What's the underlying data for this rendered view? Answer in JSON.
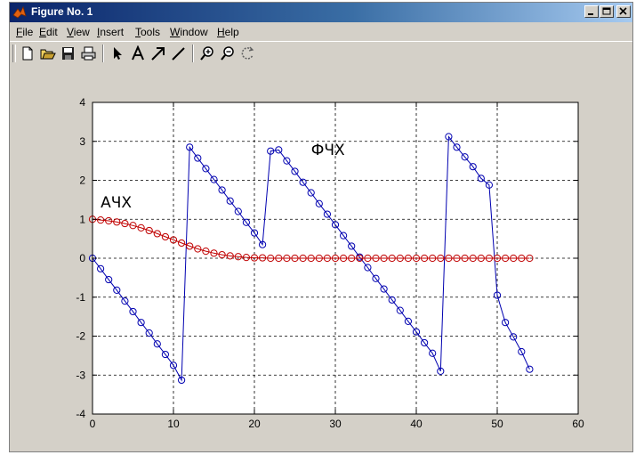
{
  "window": {
    "title": "Figure No. 1"
  },
  "menu": {
    "items": [
      "File",
      "Edit",
      "View",
      "Insert",
      "Tools",
      "Window",
      "Help"
    ]
  },
  "toolbar": {
    "buttons": [
      "new-figure",
      "open-file",
      "save",
      "print",
      "select-arrow",
      "insert-text",
      "insert-arrow",
      "insert-line",
      "zoom-in",
      "zoom-out",
      "rotate-3d"
    ]
  },
  "colors": {
    "window_bg": "#d4d0c8",
    "titlebar": "#0a246a",
    "phase_series": "#0000b0",
    "amplitude_series": "#c00000"
  },
  "chart_data": {
    "type": "line",
    "xlim": [
      0,
      60
    ],
    "ylim": [
      -4,
      4
    ],
    "x_ticks": [
      "0",
      "10",
      "20",
      "30",
      "40",
      "50",
      "60"
    ],
    "y_ticks": [
      "4",
      "3",
      "2",
      "1",
      "0",
      "-1",
      "-2",
      "-3",
      "-4"
    ],
    "grid": true,
    "annotations": [
      {
        "text": "АЧХ",
        "x": 1,
        "y": 1.3
      },
      {
        "text": "ФЧХ",
        "x": 27,
        "y": 2.65
      }
    ],
    "series": [
      {
        "color": "#0000b0",
        "marker": "circle",
        "x": [
          0,
          1,
          2,
          3,
          4,
          5,
          6,
          7,
          8,
          9,
          10,
          11,
          12,
          13,
          14,
          15,
          16,
          17,
          18,
          19,
          20,
          21,
          22,
          23,
          24,
          25,
          26,
          27,
          28,
          29,
          30,
          31,
          32,
          33,
          34,
          35,
          36,
          37,
          38,
          39,
          40,
          41,
          42,
          43,
          44,
          45,
          46,
          47,
          48,
          49,
          50,
          51,
          52,
          53,
          54
        ],
        "y": [
          0,
          -0.27,
          -0.55,
          -0.82,
          -1.1,
          -1.37,
          -1.65,
          -1.92,
          -2.2,
          -2.47,
          -2.75,
          -3.13,
          2.85,
          2.57,
          2.3,
          2.02,
          1.75,
          1.47,
          1.2,
          0.92,
          0.65,
          0.35,
          2.75,
          2.78,
          2.5,
          2.23,
          1.95,
          1.68,
          1.4,
          1.13,
          0.86,
          0.58,
          0.31,
          0.03,
          -0.24,
          -0.52,
          -0.79,
          -1.07,
          -1.34,
          -1.62,
          -1.89,
          -2.17,
          -2.44,
          -2.9,
          3.12,
          2.85,
          2.6,
          2.35,
          2.05,
          1.88,
          -0.95,
          -1.65,
          -2.02,
          -2.4,
          -2.85
        ]
      },
      {
        "color": "#c00000",
        "marker": "circle",
        "x": [
          0,
          1,
          2,
          3,
          4,
          5,
          6,
          7,
          8,
          9,
          10,
          11,
          12,
          13,
          14,
          15,
          16,
          17,
          18,
          19,
          20,
          21,
          22,
          23,
          24,
          25,
          26,
          27,
          28,
          29,
          30,
          31,
          32,
          33,
          34,
          35,
          36,
          37,
          38,
          39,
          40,
          41,
          42,
          43,
          44,
          45,
          46,
          47,
          48,
          49,
          50,
          51,
          52,
          53,
          54
        ],
        "y": [
          1,
          0.98,
          0.96,
          0.93,
          0.89,
          0.84,
          0.78,
          0.71,
          0.63,
          0.55,
          0.47,
          0.39,
          0.31,
          0.24,
          0.18,
          0.13,
          0.09,
          0.06,
          0.04,
          0.02,
          0.01,
          0.01,
          0,
          0,
          0,
          0,
          0,
          0,
          0,
          0,
          0,
          0,
          0,
          0,
          0,
          0,
          0,
          0,
          0,
          0,
          0,
          0,
          0,
          0,
          0,
          0,
          0,
          0,
          0,
          0,
          0,
          0,
          0,
          0,
          0
        ]
      }
    ]
  }
}
